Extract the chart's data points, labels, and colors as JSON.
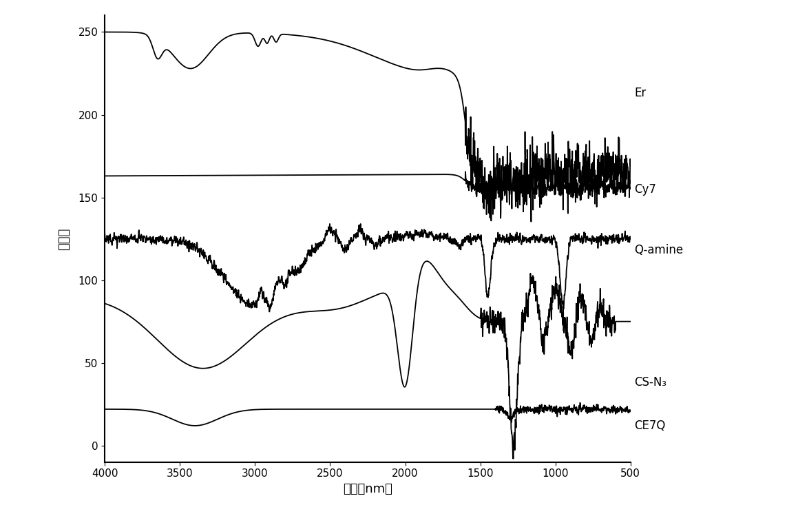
{
  "title": "",
  "xlabel": "波长（nm）",
  "ylabel": "透过率",
  "xlim": [
    4000,
    500
  ],
  "ylim": [
    -10,
    260
  ],
  "yticks": [
    0,
    50,
    100,
    150,
    200,
    250
  ],
  "xticks": [
    4000,
    3500,
    3000,
    2500,
    2000,
    1500,
    1000,
    500
  ],
  "labels": [
    "Er",
    "Cy7",
    "Q-amine",
    "CS-N₃",
    "CE7Q"
  ],
  "background_color": "#ffffff",
  "line_color": "#000000",
  "line_width": 1.3,
  "font_size_axis": 13,
  "font_size_label": 12,
  "font_size_tick": 11
}
